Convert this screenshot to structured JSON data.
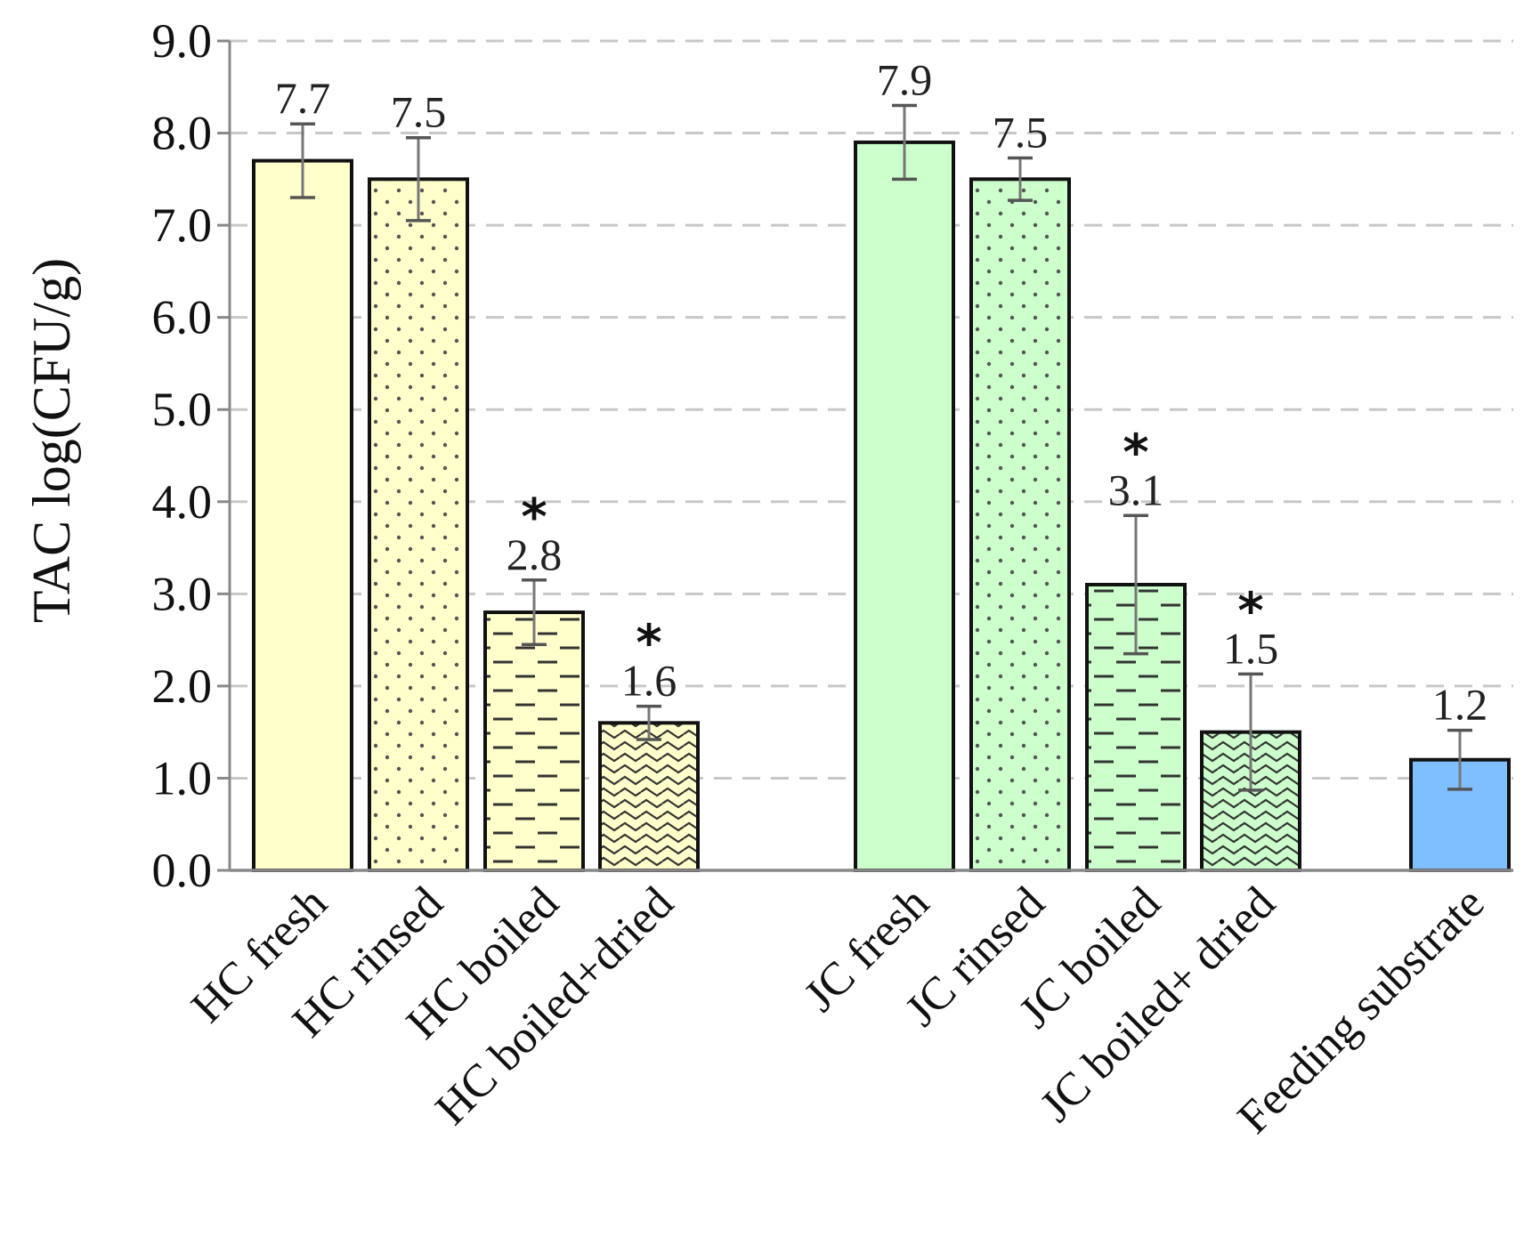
{
  "chart_data": {
    "type": "bar",
    "ylabel": "TAC log(CFU/g)",
    "ylim": [
      0,
      9
    ],
    "yticks": [
      "0.0",
      "1.0",
      "2.0",
      "3.0",
      "4.0",
      "5.0",
      "6.0",
      "7.0",
      "8.0",
      "9.0"
    ],
    "grid": "horizontal dashed",
    "categories": [
      "HC fresh",
      "HC rinsed",
      "HC boiled",
      "HC boiled+dried",
      "JC fresh",
      "JC rinsed",
      "JC boiled",
      "JC boiled+ dried",
      "Feeding substrate"
    ],
    "values": [
      7.7,
      7.5,
      2.8,
      1.6,
      7.9,
      7.5,
      3.1,
      1.5,
      1.2
    ],
    "value_labels": [
      "7.7",
      "7.5",
      "2.8",
      "1.6",
      "7.9",
      "7.5",
      "3.1",
      "1.5",
      "1.2"
    ],
    "error": [
      0.4,
      0.45,
      0.35,
      0.18,
      0.4,
      0.23,
      0.75,
      0.63,
      0.32
    ],
    "significant": [
      "",
      "",
      "*",
      "*",
      "",
      "",
      "*",
      "*",
      ""
    ],
    "colors": [
      "#ffffcc",
      "#ffffcc",
      "#ffffcc",
      "#ffffcc",
      "#ccffcc",
      "#ccffcc",
      "#ccffcc",
      "#ccffcc",
      "#80bfff"
    ],
    "patterns": [
      "solid",
      "dots",
      "dashes",
      "waves",
      "solid",
      "dots",
      "dashes",
      "waves",
      "solid"
    ]
  }
}
